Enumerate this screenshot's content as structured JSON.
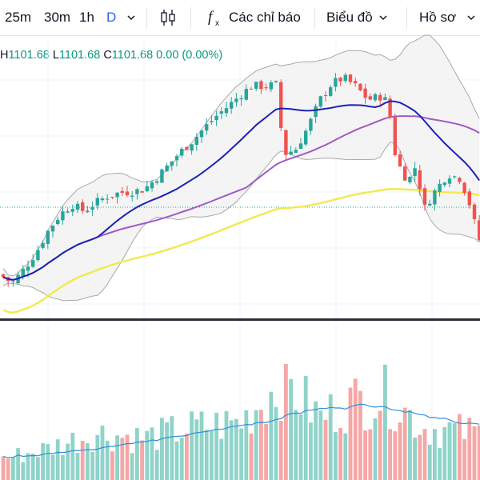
{
  "toolbar": {
    "intervals": [
      "25m",
      "30m",
      "1h",
      "D"
    ],
    "active_interval": "D",
    "indicators_label": "Các chỉ báo",
    "chart_type_label": "Biểu đồ",
    "profile_label": "Hồ sơ"
  },
  "ohlc": {
    "h_label": "H",
    "h_value": "1101.68",
    "l_label": "L",
    "l_value": "1101.68",
    "c_label": "C",
    "c_value": "1101.68",
    "change": "0.00 (0.00%)"
  },
  "colors": {
    "up": "#26a69a",
    "down": "#ef5350",
    "vol_up": "#8fd3c9",
    "vol_down": "#f5a7a6",
    "ma_short": "#1a23b5",
    "ma_mid": "#a05bc4",
    "ma_long": "#f2e94e",
    "bollinger": "#a9a9a9",
    "volume_ma": "#2f8fd8",
    "accent": "#2962ff"
  },
  "chart_data": [
    {
      "type": "candlestick",
      "price_points": [
        {
          "x": 0,
          "p": 1040
        },
        {
          "x": 15,
          "p": 1032
        },
        {
          "x": 30,
          "p": 1045
        },
        {
          "x": 45,
          "p": 1060
        },
        {
          "x": 60,
          "p": 1080
        },
        {
          "x": 75,
          "p": 1095
        },
        {
          "x": 90,
          "p": 1104
        },
        {
          "x": 105,
          "p": 1098
        },
        {
          "x": 120,
          "p": 1106
        },
        {
          "x": 135,
          "p": 1112
        },
        {
          "x": 150,
          "p": 1115
        },
        {
          "x": 165,
          "p": 1116
        },
        {
          "x": 180,
          "p": 1118
        },
        {
          "x": 195,
          "p": 1128
        },
        {
          "x": 210,
          "p": 1140
        },
        {
          "x": 225,
          "p": 1152
        },
        {
          "x": 240,
          "p": 1162
        },
        {
          "x": 255,
          "p": 1174
        },
        {
          "x": 270,
          "p": 1185
        },
        {
          "x": 285,
          "p": 1194
        },
        {
          "x": 300,
          "p": 1204
        },
        {
          "x": 315,
          "p": 1213
        },
        {
          "x": 330,
          "p": 1212
        },
        {
          "x": 345,
          "p": 1214
        },
        {
          "x": 355,
          "p": 1150
        },
        {
          "x": 370,
          "p": 1155
        },
        {
          "x": 385,
          "p": 1175
        },
        {
          "x": 400,
          "p": 1200
        },
        {
          "x": 415,
          "p": 1215
        },
        {
          "x": 430,
          "p": 1220
        },
        {
          "x": 445,
          "p": 1212
        },
        {
          "x": 460,
          "p": 1200
        },
        {
          "x": 475,
          "p": 1203
        },
        {
          "x": 485,
          "p": 1198
        },
        {
          "x": 495,
          "p": 1145
        },
        {
          "x": 510,
          "p": 1125
        },
        {
          "x": 520,
          "p": 1140
        },
        {
          "x": 530,
          "p": 1100
        },
        {
          "x": 545,
          "p": 1118
        },
        {
          "x": 560,
          "p": 1132
        },
        {
          "x": 575,
          "p": 1128
        },
        {
          "x": 585,
          "p": 1110
        },
        {
          "x": 595,
          "p": 1082
        },
        {
          "x": 600,
          "p": 1070
        }
      ],
      "current_price_line": 1101.68
    },
    {
      "type": "bar",
      "volume_profile": [
        {
          "x": 0,
          "v": 0.2
        },
        {
          "x": 60,
          "v": 0.3
        },
        {
          "x": 120,
          "v": 0.45
        },
        {
          "x": 180,
          "v": 0.4
        },
        {
          "x": 240,
          "v": 0.5
        },
        {
          "x": 300,
          "v": 0.55
        },
        {
          "x": 355,
          "v": 0.95
        },
        {
          "x": 400,
          "v": 0.6
        },
        {
          "x": 440,
          "v": 0.75
        },
        {
          "x": 485,
          "v": 0.8
        },
        {
          "x": 530,
          "v": 0.5
        },
        {
          "x": 600,
          "v": 0.45
        }
      ]
    }
  ]
}
